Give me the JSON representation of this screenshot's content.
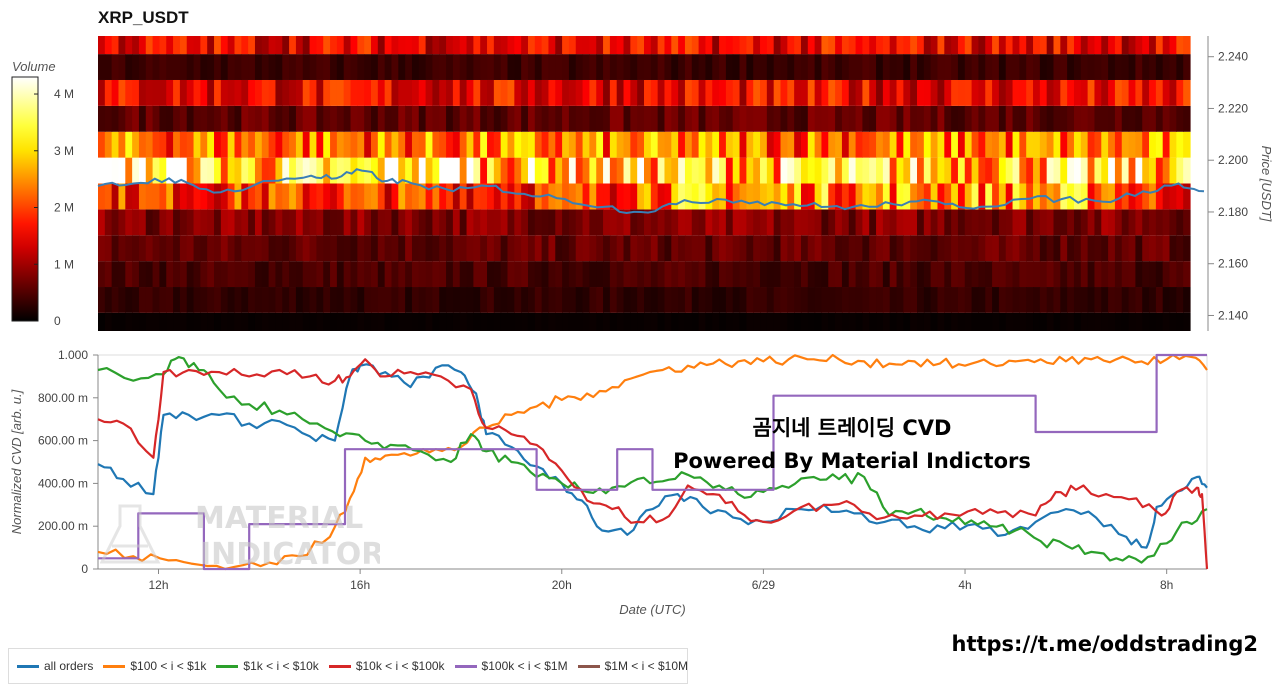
{
  "page": {
    "title": "XRP_USDT",
    "link": "https://t.me/oddstrading2"
  },
  "annotation": {
    "line1": "곰지네 트레이딩 CVD",
    "line2": "Powered By Material Indictors"
  },
  "watermark": {
    "line1": "MATERIAL",
    "line2": "INDICATORS"
  },
  "colors": {
    "all_orders": "#1f77b4",
    "t100": "#ff7f0e",
    "t1k": "#2ca02c",
    "t10k": "#d62728",
    "t100k": "#9467bd",
    "t1m": "#8c564b",
    "price_line": "#3a7fb5"
  },
  "chart_data": [
    {
      "type": "heatmap",
      "title": "XRP_USDT",
      "colorbar": {
        "title": "Volume",
        "ticks": [
          "0",
          "1 M",
          "2 M",
          "3 M",
          "4 M"
        ],
        "range": [
          0,
          4300000
        ],
        "colormap": "hot"
      },
      "ylabel": "Price [USDT]",
      "ylim": [
        2.134,
        2.248
      ],
      "y_ticks": [
        2.14,
        2.16,
        2.18,
        2.2,
        2.22,
        2.24
      ],
      "y_tick_labels": [
        "2.140",
        "2.160",
        "2.180",
        "2.200",
        "2.220",
        "2.240"
      ],
      "price_bins_mid": [
        2.136,
        2.146,
        2.156,
        2.166,
        2.176,
        2.186,
        2.196,
        2.206,
        2.216,
        2.226,
        2.236,
        2.246
      ],
      "bin_mean_volume_M": [
        0.05,
        0.3,
        0.45,
        0.6,
        0.8,
        1.9,
        3.0,
        2.3,
        0.6,
        1.5,
        0.35,
        1.5
      ],
      "price_series": {
        "name": "price",
        "x_hours": [
          10.8,
          11.5,
          12.2,
          12.8,
          13.5,
          14.2,
          15.0,
          15.5,
          16.0,
          16.5,
          17.0,
          17.8,
          18.5,
          19.2,
          20.0,
          20.8,
          21.5,
          22.2,
          23.0,
          23.8,
          24.5,
          25.2,
          26.0,
          26.8,
          27.5,
          28.2,
          29.0,
          29.8,
          30.6,
          31.4,
          32.1,
          32.6
        ],
        "values": [
          2.19,
          2.191,
          2.193,
          2.189,
          2.188,
          2.192,
          2.194,
          2.193,
          2.196,
          2.192,
          2.191,
          2.188,
          2.19,
          2.187,
          2.185,
          2.182,
          2.18,
          2.183,
          2.185,
          2.184,
          2.183,
          2.182,
          2.182,
          2.184,
          2.183,
          2.182,
          2.185,
          2.185,
          2.184,
          2.188,
          2.191,
          2.188
        ]
      }
    },
    {
      "type": "line",
      "ylabel": "Normalized CVD [arb. u.]",
      "xlabel": "Date (UTC)",
      "ylim": [
        0,
        1
      ],
      "y_ticks": [
        0,
        0.2,
        0.4,
        0.6,
        0.8,
        1.0
      ],
      "y_tick_labels": [
        "0",
        "200.00 m",
        "400.00 m",
        "600.00 m",
        "800.00 m",
        "1.000"
      ],
      "xlim_hours": [
        10.8,
        32.8
      ],
      "x_ticks": [
        12,
        16,
        20,
        24,
        28,
        32
      ],
      "x_tick_labels": [
        "12h",
        "16h",
        "20h",
        "6/29",
        "4h",
        "8h"
      ],
      "series": [
        {
          "name": "all orders",
          "color_key": "all_orders",
          "x": [
            10.8,
            11.3,
            11.9,
            12.1,
            12.6,
            13.2,
            13.8,
            14.4,
            15.0,
            15.5,
            15.8,
            16.0,
            16.5,
            17.0,
            17.5,
            18.0,
            18.3,
            18.5,
            19.0,
            19.5,
            20.0,
            20.4,
            20.8,
            21.3,
            21.8,
            22.3,
            22.8,
            23.4,
            24.0,
            24.6,
            25.2,
            25.8,
            26.4,
            27.0,
            27.6,
            28.2,
            28.8,
            29.4,
            30.0,
            30.6,
            31.2,
            31.6,
            31.8,
            32.2,
            32.6,
            32.8
          ],
          "values": [
            0.49,
            0.42,
            0.35,
            0.72,
            0.72,
            0.72,
            0.68,
            0.69,
            0.62,
            0.6,
            0.9,
            0.95,
            0.92,
            0.85,
            0.94,
            0.92,
            0.82,
            0.63,
            0.57,
            0.48,
            0.4,
            0.32,
            0.18,
            0.16,
            0.28,
            0.35,
            0.29,
            0.24,
            0.22,
            0.28,
            0.3,
            0.26,
            0.22,
            0.2,
            0.19,
            0.21,
            0.16,
            0.22,
            0.28,
            0.24,
            0.15,
            0.1,
            0.29,
            0.36,
            0.43,
            0.38
          ]
        },
        {
          "name": "$100 < i < $1k",
          "color_key": "t100",
          "x": [
            10.8,
            11.5,
            12.2,
            12.8,
            13.5,
            14.2,
            14.8,
            15.4,
            15.8,
            16.1,
            16.5,
            17.0,
            17.5,
            18.0,
            18.5,
            19.0,
            19.5,
            20.0,
            20.5,
            21.0,
            21.5,
            22.0,
            22.5,
            23.0,
            23.5,
            24.0,
            24.5,
            25.0,
            25.5,
            26.0,
            26.5,
            27.0,
            27.5,
            28.0,
            28.5,
            29.0,
            29.5,
            30.0,
            30.5,
            31.0,
            31.5,
            32.0,
            32.5,
            32.8
          ],
          "values": [
            0.08,
            0.06,
            0.04,
            0.02,
            0.01,
            0.03,
            0.06,
            0.15,
            0.33,
            0.52,
            0.53,
            0.53,
            0.56,
            0.57,
            0.66,
            0.72,
            0.76,
            0.79,
            0.82,
            0.85,
            0.9,
            0.93,
            0.95,
            0.96,
            0.97,
            0.97,
            0.98,
            0.98,
            0.98,
            0.97,
            0.96,
            0.97,
            0.96,
            0.95,
            0.96,
            0.97,
            0.98,
            0.97,
            0.98,
            0.98,
            0.97,
            0.98,
            0.99,
            0.93
          ]
        },
        {
          "name": "$1k < i < $10k",
          "color_key": "t1k",
          "x": [
            10.8,
            11.5,
            12.1,
            12.4,
            12.8,
            13.2,
            13.8,
            14.4,
            15.0,
            15.6,
            16.1,
            16.6,
            17.2,
            17.8,
            18.2,
            18.5,
            19.0,
            19.5,
            20.0,
            20.5,
            21.0,
            21.5,
            22.0,
            22.5,
            23.0,
            23.5,
            24.0,
            24.5,
            25.0,
            25.5,
            26.0,
            26.5,
            27.0,
            27.5,
            28.0,
            28.5,
            29.0,
            29.5,
            30.0,
            30.5,
            31.0,
            31.5,
            32.0,
            32.4,
            32.8
          ],
          "values": [
            0.93,
            0.88,
            0.91,
            0.99,
            0.93,
            0.84,
            0.77,
            0.74,
            0.68,
            0.62,
            0.6,
            0.58,
            0.55,
            0.5,
            0.63,
            0.55,
            0.5,
            0.43,
            0.4,
            0.36,
            0.38,
            0.42,
            0.41,
            0.44,
            0.38,
            0.35,
            0.36,
            0.38,
            0.43,
            0.42,
            0.43,
            0.25,
            0.27,
            0.24,
            0.21,
            0.2,
            0.18,
            0.13,
            0.11,
            0.08,
            0.05,
            0.03,
            0.12,
            0.22,
            0.28
          ]
        },
        {
          "name": "$10k < i < $100k",
          "color_key": "t10k",
          "x": [
            10.8,
            11.3,
            11.9,
            12.1,
            12.6,
            13.2,
            13.8,
            14.4,
            15.0,
            15.5,
            15.8,
            16.1,
            16.5,
            17.0,
            17.6,
            18.2,
            18.5,
            19.0,
            19.5,
            20.0,
            20.5,
            21.0,
            21.5,
            22.0,
            22.5,
            23.0,
            23.5,
            24.0,
            24.6,
            25.2,
            25.8,
            26.4,
            27.0,
            27.6,
            28.2,
            28.8,
            29.4,
            29.8,
            30.2,
            30.8,
            31.4,
            31.9,
            32.2,
            32.6,
            32.7,
            32.8
          ],
          "values": [
            0.7,
            0.68,
            0.52,
            0.92,
            0.93,
            0.92,
            0.9,
            0.93,
            0.9,
            0.88,
            0.9,
            0.98,
            0.9,
            0.92,
            0.9,
            0.84,
            0.66,
            0.63,
            0.58,
            0.46,
            0.32,
            0.28,
            0.22,
            0.23,
            0.39,
            0.35,
            0.27,
            0.22,
            0.27,
            0.3,
            0.3,
            0.24,
            0.25,
            0.26,
            0.28,
            0.27,
            0.25,
            0.36,
            0.37,
            0.35,
            0.33,
            0.25,
            0.36,
            0.38,
            0.35,
            0.0
          ]
        },
        {
          "name": "$100k < i < $1M",
          "color_key": "t100k",
          "x": [
            10.8,
            11.6,
            11.6,
            12.9,
            12.9,
            13.8,
            13.8,
            15.7,
            15.7,
            19.5,
            19.5,
            21.1,
            21.1,
            21.8,
            21.8,
            22.3,
            22.3,
            24.2,
            24.2,
            25.5,
            25.5,
            29.4,
            29.4,
            31.8,
            31.8,
            32.8
          ],
          "values": [
            0.05,
            0.05,
            0.26,
            0.26,
            0.0,
            0.0,
            0.21,
            0.21,
            0.56,
            0.56,
            0.37,
            0.37,
            0.56,
            0.56,
            0.37,
            0.37,
            0.37,
            0.37,
            0.81,
            0.81,
            0.81,
            0.81,
            0.64,
            0.64,
            1.0,
            1.0
          ]
        },
        {
          "name": "$1M < i < $10M",
          "color_key": "t1m",
          "x": [],
          "values": []
        }
      ]
    }
  ],
  "legend": [
    {
      "label": "all orders",
      "color_key": "all_orders"
    },
    {
      "label": "$100 < i < $1k",
      "color_key": "t100"
    },
    {
      "label": "$1k < i < $10k",
      "color_key": "t1k"
    },
    {
      "label": "$10k < i < $100k",
      "color_key": "t10k"
    },
    {
      "label": "$100k < i < $1M",
      "color_key": "t100k"
    },
    {
      "label": "$1M < i < $10M",
      "color_key": "t1m"
    }
  ]
}
